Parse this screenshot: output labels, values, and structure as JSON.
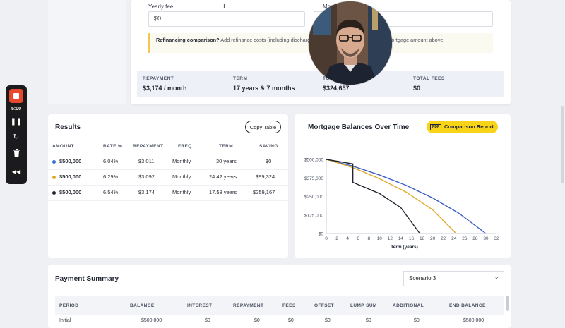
{
  "form": {
    "yearly_fee_label": "Yearly fee",
    "yearly_fee_value": "$0",
    "monthly_fee_label": "Mon",
    "note_bold": "Refinancing comparison?",
    "note_text": " Add refinance costs (including discharge of … ng application fees) to the mortgage amount above."
  },
  "summary": [
    {
      "label": "REPAYMENT",
      "value": "$3,174 / month"
    },
    {
      "label": "TERM",
      "value": "17 years & 7 months"
    },
    {
      "label": "TO",
      "value": "$324,657"
    },
    {
      "label": "TOTAL FEES",
      "value": "$0"
    }
  ],
  "recorder": {
    "time": "5:00",
    "icons": [
      "stop-icon",
      "pause-icon",
      "restart-icon",
      "trash-icon",
      "rewind-icon"
    ]
  },
  "results": {
    "title": "Results",
    "copy_label": "Copy Table",
    "columns": [
      "AMOUNT",
      "RATE %",
      "REPAYMENT",
      "FREQ",
      "TERM",
      "SAVING"
    ],
    "rows": [
      {
        "color": "#2f6fdc",
        "amount": "$500,000",
        "rate": "6.04%",
        "repayment": "$3,011",
        "freq": "Monthly",
        "term": "30 years",
        "saving": "$0"
      },
      {
        "color": "#e0a92b",
        "amount": "$500,000",
        "rate": "6.29%",
        "repayment": "$3,092",
        "freq": "Monthly",
        "term": "24.42 years",
        "saving": "$99,324"
      },
      {
        "color": "#1f2430",
        "amount": "$500,000",
        "rate": "6.54%",
        "repayment": "$3,174",
        "freq": "Monthly",
        "term": "17.58 years",
        "saving": "$259,167"
      }
    ]
  },
  "chart": {
    "title": "Mortgage Balances Over Time",
    "report_label": "Comparison Report",
    "pdf_badge": "PDF"
  },
  "chart_data": {
    "type": "line",
    "xlabel": "Term (years)",
    "ylabel": "",
    "xlim": [
      0,
      32
    ],
    "ylim": [
      0,
      500000
    ],
    "x_ticks": [
      "0",
      "2",
      "4",
      "6",
      "8",
      "10",
      "12",
      "14",
      "16",
      "18",
      "20",
      "22",
      "24",
      "26",
      "28",
      "30",
      "32"
    ],
    "y_ticks": [
      "$0",
      "$125,000",
      "$250,000",
      "$375,000",
      "$500,000"
    ],
    "grid": false,
    "series": [
      {
        "color": "#3b5fc4",
        "points": [
          [
            0,
            500000
          ],
          [
            5,
            455000
          ],
          [
            10,
            395000
          ],
          [
            15,
            325000
          ],
          [
            20,
            240000
          ],
          [
            25,
            135000
          ],
          [
            30,
            0
          ]
        ]
      },
      {
        "color": "#e0a92b",
        "points": [
          [
            0,
            500000
          ],
          [
            5,
            445000
          ],
          [
            10,
            370000
          ],
          [
            15,
            280000
          ],
          [
            20,
            160000
          ],
          [
            24.42,
            0
          ]
        ]
      },
      {
        "color": "#1f2430",
        "points": [
          [
            0,
            500000
          ],
          [
            5,
            470000
          ],
          [
            5,
            345000
          ],
          [
            10,
            270000
          ],
          [
            14,
            175000
          ],
          [
            17.58,
            0
          ]
        ]
      }
    ]
  },
  "payment": {
    "title": "Payment Summary",
    "scenario": "Scenario 3",
    "columns": [
      "PERIOD",
      "BALANCE",
      "INTEREST",
      "REPAYMENT",
      "FEES",
      "OFFSET",
      "LUMP SUM",
      "ADDITIONAL",
      "END BALANCE"
    ],
    "first_row": [
      "Initial",
      "$500,000",
      "$0",
      "$0",
      "$0",
      "$0",
      "$0",
      "$0",
      "$500,000"
    ]
  }
}
